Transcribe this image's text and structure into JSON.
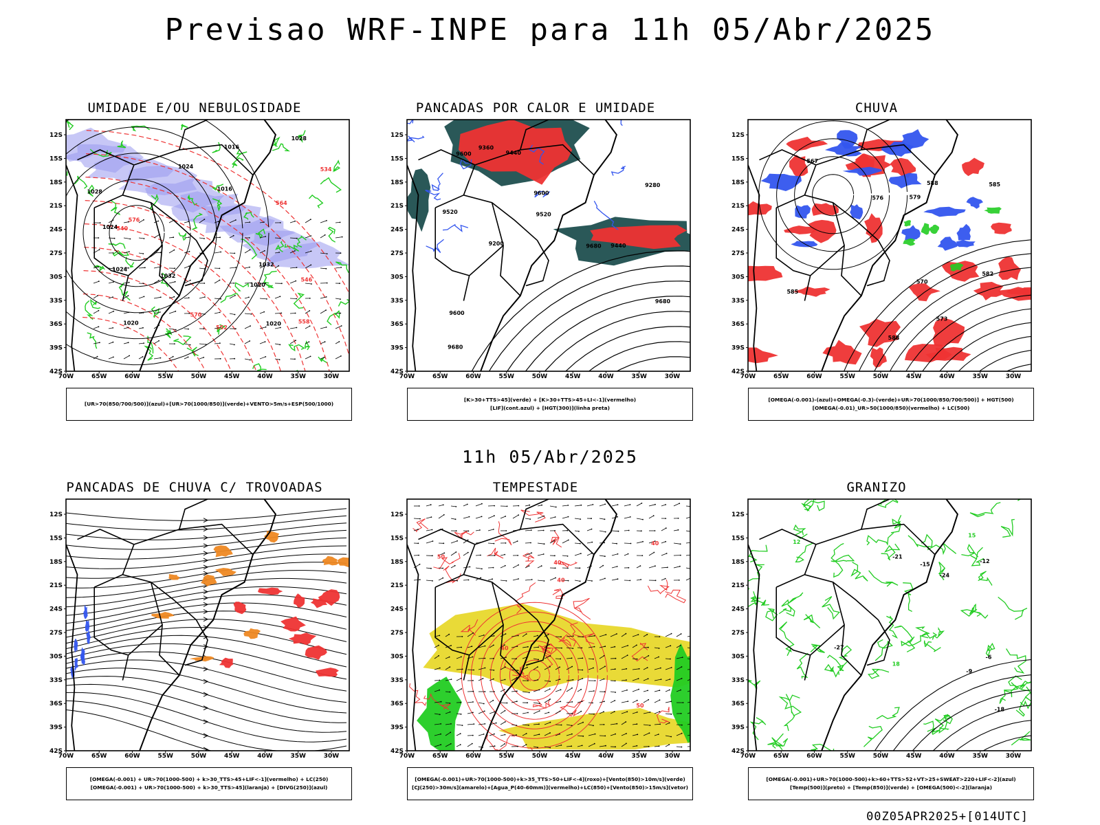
{
  "header": {
    "title": "Previsao WRF-INPE  para 11h 05/Abr/2025"
  },
  "mid_title": "11h 05/Abr/2025",
  "footer": {
    "stamp": "00Z05APR2025+[014UTC]"
  },
  "axes": {
    "lat_labels": [
      "12S",
      "15S",
      "18S",
      "21S",
      "24S",
      "27S",
      "30S",
      "33S",
      "36S",
      "39S",
      "42S"
    ],
    "lon_labels": [
      "70W",
      "65W",
      "60W",
      "55W",
      "50W",
      "45W",
      "40W",
      "35W",
      "30W"
    ]
  },
  "colors": {
    "blue": "#3355ee",
    "green": "#22cc22",
    "red": "#ee3333",
    "lavender": "#9999ee",
    "orange": "#ee8822",
    "yellow": "#e8d82c",
    "darkteal": "#1f4f4f",
    "black": "#000000"
  },
  "panels": [
    {
      "id": "umidade",
      "title": "UMIDADE E/OU NEBULOSIDADE",
      "legend": [
        "[UR>70(850/700/500)](azul)+[UR>70(1000/850)](verde)+VENTO>5m/s+ESP(500/1000)"
      ],
      "labels": [
        "1020",
        "1016",
        "1024",
        "1028",
        "1032",
        "1020",
        "1024",
        "1028",
        "1016",
        "1020",
        "1032",
        "1024",
        "576",
        "570",
        "564",
        "558",
        "552",
        "546",
        "540",
        "534"
      ]
    },
    {
      "id": "pancadas-calor",
      "title": "PANCADAS POR CALOR E UMIDADE",
      "legend": [
        "[K>30+TTS>45](verde) + [K>30+TTS>45+LI<-1](vermelho)",
        "[LIF](cont.azul) + [HGT(300)](linha preta)"
      ],
      "labels": [
        "9680",
        "9600",
        "9520",
        "9440",
        "9360",
        "9280",
        "9200",
        "9680",
        "9600",
        "9520",
        "9440",
        "9600",
        "9680"
      ]
    },
    {
      "id": "chuva",
      "title": "CHUVA",
      "legend": [
        "[OMEGA(-0.001)-(azul)+OMEGA(-0.3)-(verde)+UR>70(1000/850/700/500)] + HGT(500)",
        "[OMEGA(-0.01)_UR>50(1000/850)(vermelho) + LC(500)"
      ],
      "labels": [
        "588",
        "585",
        "582",
        "579",
        "576",
        "573",
        "570",
        "567",
        "588",
        "585"
      ]
    },
    {
      "id": "pancadas-trovoadas",
      "title": "PANCADAS DE CHUVA C/ TROVOADAS",
      "legend": [
        "[OMEGA(-0.001) + UR>70(1000-500) + k>30_TTS>45+LIF<-1](vermelho) + LC(250)",
        "[OMEGA(-0.001) + UR>70(1000-500) + k>30_TTS>45](laranja) + [DIVG(250)](azul)"
      ],
      "labels": []
    },
    {
      "id": "tempestade",
      "title": "TEMPESTADE",
      "legend": [
        "[OMEGA(-0.001)+UR>70(1000-500)+k>35_TTS>50+LIF<-4](roxo)+[Vento(850)>10m/s](verde)",
        "[CJ(250)>30m/s](amarelo)+[Agua_P(40-60mm)](vermelho)+LC(850)+[Vento(850)>15m/s](vetor)"
      ],
      "labels": [
        "40",
        "50",
        "40",
        "40",
        "50",
        "40"
      ]
    },
    {
      "id": "granizo",
      "title": "GRANIZO",
      "legend": [
        "[OMEGA(-0.001)+UR>70(1000-500)+k>60+TTS>52+VT>25+SWEAT>220+LIF<-2](azul)",
        "[Temp(500)](preto) + [Temp(850)](verde) + [OMEGA(500)<-2](laranja)"
      ],
      "labels": [
        "-12",
        "-15",
        "-18",
        "-21",
        "-24",
        "-27",
        "-9",
        "-6",
        "15",
        "12",
        "18"
      ]
    }
  ]
}
